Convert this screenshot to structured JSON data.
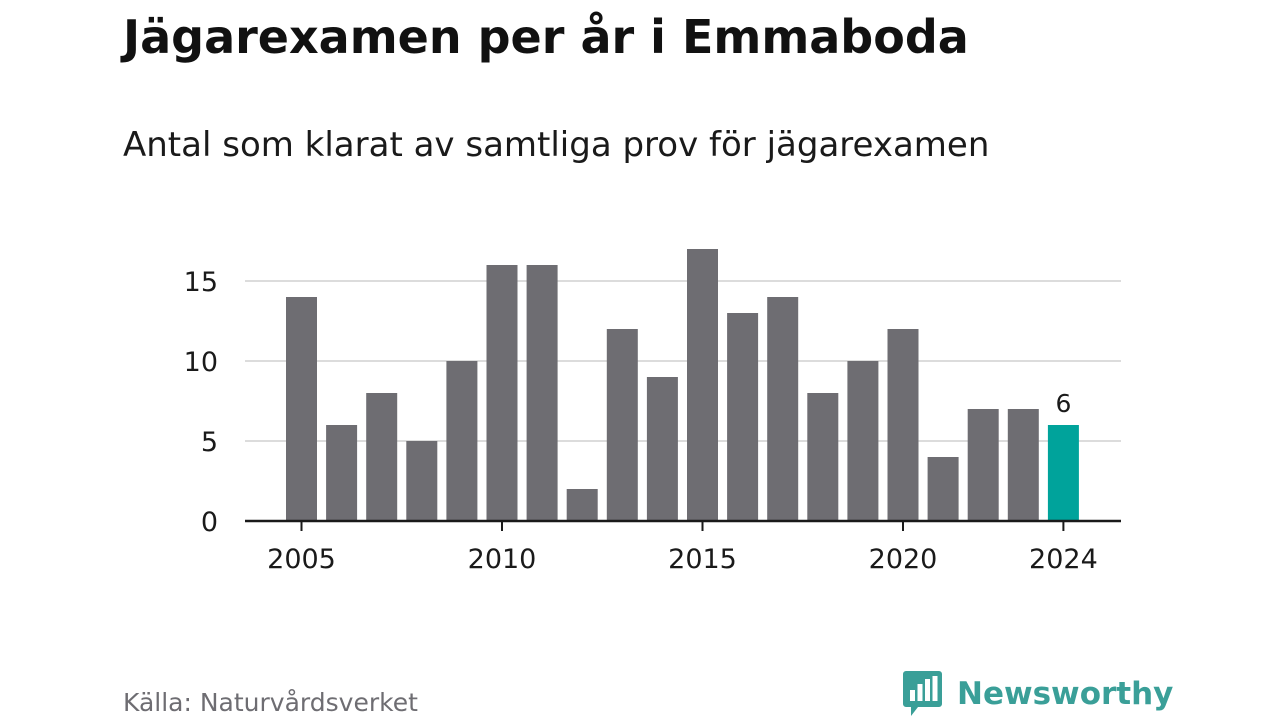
{
  "title": "Jägarexamen per år i Emmaboda",
  "subtitle": "Antal som klarat av samtliga prov för jägarexamen",
  "source": "Källa: Naturvårdsverket",
  "brand": {
    "name": "Newsworthy",
    "icon": "bar-chart-speech-bubble-icon",
    "color": "#3a9f98"
  },
  "colors": {
    "bar": "#6e6d72",
    "highlight": "#00a39b",
    "grid": "#dcdcdc",
    "axis": "#1a1a1a",
    "text": "#1a1a1a"
  },
  "chart_data": {
    "type": "bar",
    "categories": [
      "2005",
      "2006",
      "2007",
      "2008",
      "2009",
      "2010",
      "2011",
      "2012",
      "2013",
      "2014",
      "2015",
      "2016",
      "2017",
      "2018",
      "2019",
      "2020",
      "2021",
      "2022",
      "2023",
      "2024"
    ],
    "values": [
      14,
      6,
      8,
      5,
      10,
      16,
      16,
      2,
      12,
      9,
      17,
      13,
      14,
      8,
      10,
      12,
      4,
      7,
      7,
      6
    ],
    "x_ticks": [
      "2005",
      "2010",
      "2015",
      "2020",
      "2024"
    ],
    "y_ticks": [
      0,
      5,
      10,
      15
    ],
    "ylim": [
      0,
      17
    ],
    "highlight": {
      "category": "2024",
      "label": "6"
    },
    "grid": "horizontal",
    "legend": "none",
    "xlabel": "",
    "ylabel": ""
  }
}
